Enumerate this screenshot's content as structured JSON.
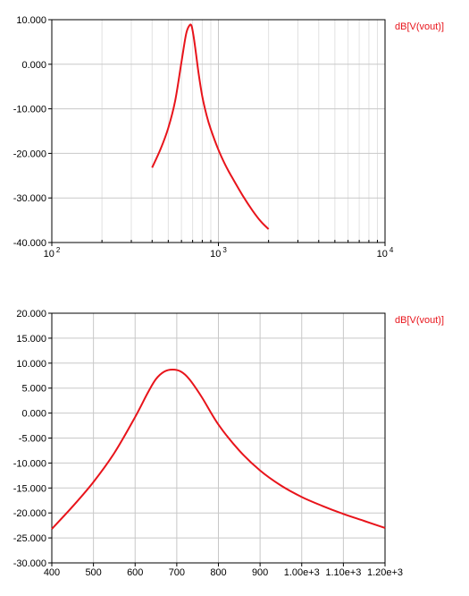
{
  "colors": {
    "trace": "#e8141b",
    "grid_major": "#c8c8c8",
    "grid_minor": "#e2e2e2",
    "axis": "#000000",
    "background": "#ffffff"
  },
  "chart_data": [
    {
      "type": "line",
      "title": "",
      "xlabel": "",
      "ylabel": "",
      "x_scale": "log",
      "xlim": [
        100,
        10000
      ],
      "ylim": [
        -40,
        10
      ],
      "grid": true,
      "legend_position": "right",
      "y_ticks": [
        10,
        0,
        -10,
        -20,
        -30,
        -40
      ],
      "y_tick_labels": [
        "10.000",
        "0.000",
        "-10.000",
        "-20.000",
        "-30.000",
        "-40.000"
      ],
      "x_ticks": [
        100,
        1000,
        10000
      ],
      "x_tick_labels": [
        {
          "base": "10",
          "exp": "2"
        },
        {
          "base": "10",
          "exp": "3"
        },
        {
          "base": "10",
          "exp": "4"
        }
      ],
      "series": [
        {
          "name": "dB[V(vout)]",
          "x": [
            400,
            450,
            500,
            550,
            600,
            640,
            670,
            690,
            710,
            730,
            760,
            800,
            850,
            900,
            1000,
            1100,
            1200,
            1400,
            1600,
            1800,
            2000
          ],
          "y": [
            -23.2,
            -19.0,
            -14.3,
            -8.2,
            0.5,
            6.8,
            8.7,
            8.6,
            6.2,
            3.0,
            -2.0,
            -7.2,
            -11.5,
            -14.6,
            -19.2,
            -22.6,
            -25.2,
            -29.5,
            -32.8,
            -35.3,
            -37.0
          ]
        }
      ]
    },
    {
      "type": "line",
      "title": "",
      "xlabel": "",
      "ylabel": "",
      "xlim": [
        400,
        1200
      ],
      "ylim": [
        -30,
        20
      ],
      "grid": true,
      "legend_position": "right",
      "y_ticks": [
        20,
        15,
        10,
        5,
        0,
        -5,
        -10,
        -15,
        -20,
        -25,
        -30
      ],
      "y_tick_labels": [
        "20.000",
        "15.000",
        "10.000",
        "5.000",
        "0.000",
        "-5.000",
        "-10.000",
        "-15.000",
        "-20.000",
        "-25.000",
        "-30.000"
      ],
      "x_ticks": [
        400,
        500,
        600,
        700,
        800,
        900,
        1000,
        1100,
        1200
      ],
      "x_tick_labels": [
        "400",
        "500",
        "600",
        "700",
        "800",
        "900",
        "1.00e+3",
        "1.10e+3",
        "1.20e+3"
      ],
      "series": [
        {
          "name": "dB[V(vout)]",
          "x": [
            400,
            450,
            500,
            550,
            600,
            630,
            650,
            670,
            690,
            710,
            730,
            760,
            800,
            850,
            900,
            950,
            1000,
            1050,
            1100,
            1150,
            1200
          ],
          "y": [
            -23.2,
            -18.7,
            -13.8,
            -8.0,
            -0.8,
            4.0,
            6.8,
            8.3,
            8.7,
            8.3,
            6.8,
            3.2,
            -2.3,
            -7.5,
            -11.5,
            -14.5,
            -16.8,
            -18.6,
            -20.2,
            -21.6,
            -23.0
          ]
        }
      ]
    }
  ]
}
